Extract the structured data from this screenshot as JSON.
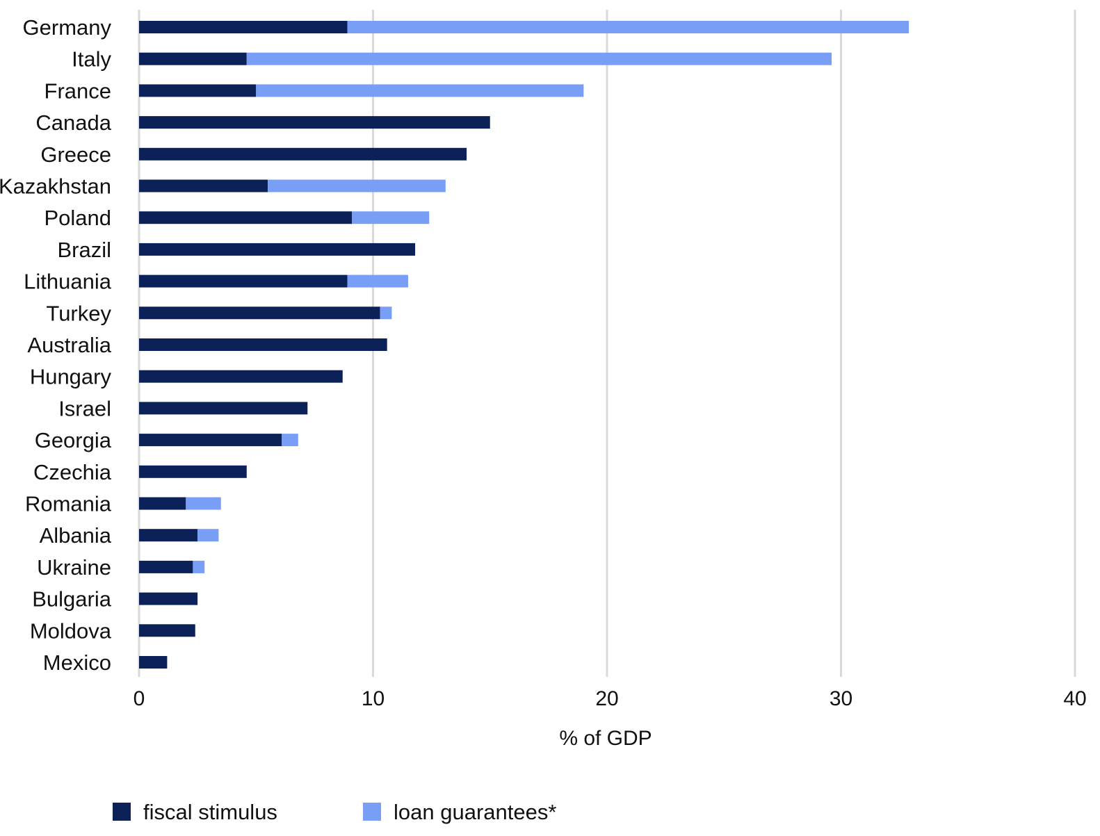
{
  "chart_data": {
    "type": "bar",
    "orientation": "horizontal",
    "stacked": true,
    "categories": [
      "Germany",
      "Italy",
      "France",
      "Canada",
      "Greece",
      "Kazakhstan",
      "Poland",
      "Brazil",
      "Lithuania",
      "Turkey",
      "Australia",
      "Hungary",
      "Israel",
      "Georgia",
      "Czechia",
      "Romania",
      "Albania",
      "Ukraine",
      "Bulgaria",
      "Moldova",
      "Mexico"
    ],
    "series": [
      {
        "name": "fiscal stimulus",
        "color": "#0b2157",
        "values": [
          8.9,
          4.6,
          5.0,
          15.0,
          14.0,
          5.5,
          9.1,
          11.8,
          8.9,
          10.3,
          10.6,
          8.7,
          7.2,
          6.1,
          4.6,
          2.0,
          2.5,
          2.3,
          2.5,
          2.4,
          1.2
        ]
      },
      {
        "name": "loan guarantees*",
        "color": "#789ff5",
        "values": [
          24.0,
          25.0,
          14.0,
          0,
          0,
          7.6,
          3.3,
          0,
          2.6,
          0.5,
          0,
          0,
          0,
          0.7,
          0,
          1.5,
          0.9,
          0.5,
          0,
          0,
          0
        ]
      }
    ],
    "x_axis": {
      "title": "% of GDP",
      "ticks": [
        "0",
        "10",
        "20",
        "30",
        "40"
      ],
      "range": [
        0,
        40
      ]
    },
    "grid": true,
    "legend_position": "bottom"
  }
}
